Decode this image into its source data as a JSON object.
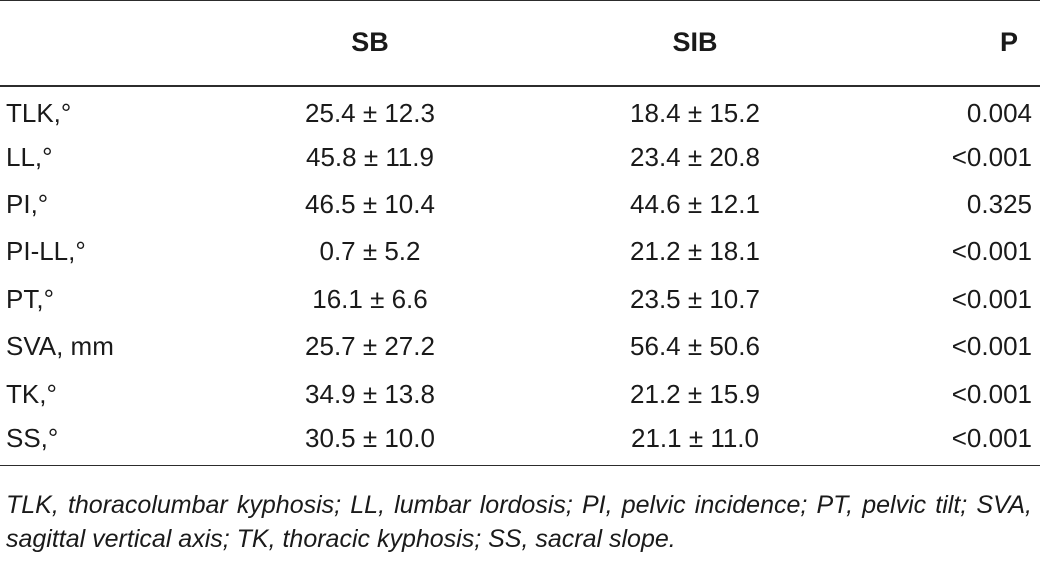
{
  "table": {
    "headers": {
      "label": "",
      "sb": "SB",
      "sib": "SIB",
      "p": "P"
    },
    "rows": [
      {
        "label": "TLK,°",
        "sb": "25.4 ± 12.3",
        "sib": "18.4 ± 15.2",
        "p": "0.004"
      },
      {
        "label": "LL,°",
        "sb": "45.8 ± 11.9",
        "sib": "23.4 ± 20.8",
        "p": "<0.001"
      },
      {
        "label": "PI,°",
        "sb": "46.5 ± 10.4",
        "sib": "44.6 ± 12.1",
        "p": "0.325"
      },
      {
        "label": "PI-LL,°",
        "sb": "0.7 ± 5.2",
        "sib": "21.2 ± 18.1",
        "p": "<0.001"
      },
      {
        "label": "PT,°",
        "sb": "16.1 ± 6.6",
        "sib": "23.5 ± 10.7",
        "p": "<0.001"
      },
      {
        "label": "SVA, mm",
        "sb": "25.7 ± 27.2",
        "sib": "56.4 ± 50.6",
        "p": "<0.001"
      },
      {
        "label": "TK,°",
        "sb": "34.9 ± 13.8",
        "sib": "21.2 ± 15.9",
        "p": "<0.001"
      },
      {
        "label": "SS,°",
        "sb": "30.5 ± 10.0",
        "sib": "21.1 ± 11.0",
        "p": "<0.001"
      }
    ]
  },
  "footnote": "TLK, thoracolumbar kyphosis; LL, lumbar lordosis; PI, pelvic incidence; PT, pelvic tilt; SVA, sagittal vertical axis; TK, thoracic kyphosis; SS, sacral slope.",
  "colors": {
    "text": "#1a1a1a",
    "rule": "#2c2c2c",
    "background": "#ffffff"
  }
}
